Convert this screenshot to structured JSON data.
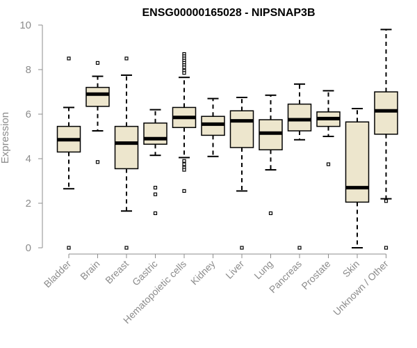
{
  "chart_data": {
    "type": "boxplot",
    "title": "ENSG00000165028 - NIPSNAP3B",
    "xlabel": "",
    "ylabel": "Expression",
    "ylim": [
      0,
      10
    ],
    "yticks": [
      0,
      2,
      4,
      6,
      8,
      10
    ],
    "box_color": "#ede6cd",
    "categories": [
      "Bladder",
      "Brain",
      "Breast",
      "Gastric",
      "Hematopoietic cells",
      "Kidney",
      "Liver",
      "Lung",
      "Pancreas",
      "Prostate",
      "Skin",
      "Unknown / Other"
    ],
    "boxes": [
      {
        "whisker_low": 2.65,
        "q1": 4.3,
        "median": 4.85,
        "q3": 5.45,
        "whisker_high": 6.3,
        "outliers": [
          8.5,
          0.0
        ]
      },
      {
        "whisker_low": 5.25,
        "q1": 6.35,
        "median": 6.9,
        "q3": 7.2,
        "whisker_high": 7.7,
        "outliers": [
          8.3,
          3.85
        ]
      },
      {
        "whisker_low": 1.65,
        "q1": 3.55,
        "median": 4.7,
        "q3": 5.45,
        "whisker_high": 7.75,
        "outliers": [
          8.5,
          0.0
        ]
      },
      {
        "whisker_low": 4.15,
        "q1": 4.65,
        "median": 4.9,
        "q3": 5.6,
        "whisker_high": 6.2,
        "outliers": [
          2.7,
          2.4,
          1.55
        ]
      },
      {
        "whisker_low": 4.05,
        "q1": 5.4,
        "median": 5.85,
        "q3": 6.3,
        "whisker_high": 7.65,
        "outliers": [
          8.7,
          8.6,
          8.5,
          8.4,
          8.3,
          8.2,
          8.1,
          7.95,
          7.85,
          3.9,
          3.75,
          3.6,
          3.5,
          2.55
        ]
      },
      {
        "whisker_low": 4.1,
        "q1": 5.05,
        "median": 5.55,
        "q3": 5.9,
        "whisker_high": 6.7,
        "outliers": []
      },
      {
        "whisker_low": 2.55,
        "q1": 4.5,
        "median": 5.7,
        "q3": 6.15,
        "whisker_high": 6.75,
        "outliers": [
          0.0
        ]
      },
      {
        "whisker_low": 3.5,
        "q1": 4.4,
        "median": 5.15,
        "q3": 5.75,
        "whisker_high": 6.85,
        "outliers": [
          1.55
        ]
      },
      {
        "whisker_low": 4.85,
        "q1": 5.25,
        "median": 5.75,
        "q3": 6.45,
        "whisker_high": 7.35,
        "outliers": [
          0.0
        ]
      },
      {
        "whisker_low": 5.0,
        "q1": 5.45,
        "median": 5.8,
        "q3": 6.1,
        "whisker_high": 7.05,
        "outliers": [
          3.75
        ]
      },
      {
        "whisker_low": 0.0,
        "q1": 2.05,
        "median": 2.7,
        "q3": 5.65,
        "whisker_high": 6.25,
        "outliers": []
      },
      {
        "whisker_low": 2.2,
        "q1": 5.1,
        "median": 6.15,
        "q3": 7.0,
        "whisker_high": 9.8,
        "outliers": [
          2.1,
          0.0
        ]
      }
    ]
  }
}
